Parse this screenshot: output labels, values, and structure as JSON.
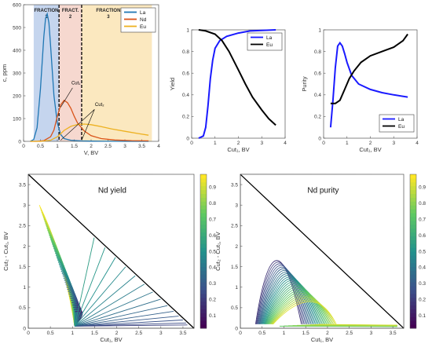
{
  "chart_data": [
    {
      "type": "line",
      "xlabel": "V, BV",
      "ylabel": "c, ppm",
      "xlim": [
        0,
        4
      ],
      "ylim": [
        0,
        600
      ],
      "xticks": [
        "0",
        "0.5",
        "1",
        "1.5",
        "2",
        "2.5",
        "3",
        "3.5",
        "4"
      ],
      "yticks": [
        "0",
        "100",
        "200",
        "300",
        "400",
        "500",
        "600"
      ],
      "legend": "top-right",
      "fractions": [
        {
          "label_1": "FRACTION",
          "label_2": "1",
          "x_range": [
            0.3,
            1.05
          ],
          "color": "#c5d5ee"
        },
        {
          "label_1": "FRACT.",
          "label_2": "2",
          "x_range": [
            1.05,
            1.72
          ],
          "color": "#f6d8cf"
        },
        {
          "label_1": "FRACTION",
          "label_2": "3",
          "x_range": [
            1.72,
            3.8
          ],
          "color": "#fbe8bf"
        }
      ],
      "cut_labels": [
        "Cut₁",
        "Cut₂"
      ],
      "series": [
        {
          "name": "La",
          "color": "#1f77b4",
          "x": [
            0.2,
            0.3,
            0.4,
            0.5,
            0.6,
            0.65,
            0.7,
            0.75,
            0.8,
            0.9,
            1.0,
            1.1,
            1.2,
            1.4,
            1.7,
            2.0,
            3.0,
            3.7
          ],
          "y": [
            0,
            8,
            60,
            230,
            460,
            540,
            560,
            520,
            420,
            200,
            80,
            30,
            12,
            5,
            2,
            1,
            0,
            0
          ]
        },
        {
          "name": "Nd",
          "color": "#d95319",
          "x": [
            0.2,
            0.4,
            0.6,
            0.8,
            0.9,
            1.0,
            1.1,
            1.2,
            1.3,
            1.4,
            1.5,
            1.6,
            1.8,
            2.0,
            2.3,
            2.7,
            3.2,
            3.7
          ],
          "y": [
            0,
            0,
            3,
            20,
            50,
            110,
            160,
            180,
            170,
            145,
            110,
            80,
            45,
            25,
            12,
            6,
            3,
            2
          ]
        },
        {
          "name": "Eu",
          "color": "#edb120",
          "x": [
            0.2,
            0.5,
            0.8,
            1.0,
            1.2,
            1.4,
            1.6,
            1.8,
            2.0,
            2.3,
            2.6,
            3.0,
            3.4,
            3.7
          ],
          "y": [
            0,
            0,
            5,
            20,
            48,
            66,
            74,
            76,
            73,
            65,
            55,
            44,
            34,
            27
          ]
        }
      ]
    },
    {
      "type": "line",
      "xlabel": "Cut₁, BV",
      "ylabel": "Yield",
      "xlim": [
        0,
        4
      ],
      "ylim": [
        0,
        1
      ],
      "xticks": [
        "0",
        "1",
        "2",
        "3",
        "4"
      ],
      "yticks": [
        "0",
        "0.2",
        "0.4",
        "0.6",
        "0.8",
        "1"
      ],
      "legend": "top-right",
      "series": [
        {
          "name": "La",
          "color": "#1a1aff",
          "x": [
            0.3,
            0.5,
            0.6,
            0.7,
            0.8,
            0.9,
            1.0,
            1.2,
            1.5,
            2.0,
            2.5,
            3.0,
            3.6
          ],
          "y": [
            0,
            0.02,
            0.1,
            0.3,
            0.55,
            0.72,
            0.83,
            0.9,
            0.94,
            0.97,
            0.99,
            0.995,
            1.0
          ]
        },
        {
          "name": "Eu",
          "color": "#000000",
          "x": [
            0.3,
            0.6,
            1.0,
            1.3,
            1.6,
            2.0,
            2.3,
            2.6,
            3.0,
            3.3,
            3.6
          ],
          "y": [
            1.0,
            0.99,
            0.96,
            0.9,
            0.8,
            0.63,
            0.5,
            0.38,
            0.26,
            0.18,
            0.12
          ]
        }
      ]
    },
    {
      "type": "line",
      "xlabel": "Cut₁, BV",
      "ylabel": "Purity",
      "xlim": [
        0,
        4
      ],
      "ylim": [
        0,
        1
      ],
      "xticks": [
        "0",
        "1",
        "2",
        "3",
        "4"
      ],
      "yticks": [
        "0",
        "0.2",
        "0.4",
        "0.6",
        "0.8",
        "1"
      ],
      "legend": "bottom-right",
      "series": [
        {
          "name": "La",
          "color": "#1a1aff",
          "x": [
            0.3,
            0.4,
            0.5,
            0.6,
            0.7,
            0.8,
            0.9,
            1.0,
            1.2,
            1.5,
            2.0,
            2.5,
            3.0,
            3.6
          ],
          "y": [
            0.1,
            0.35,
            0.65,
            0.85,
            0.88,
            0.85,
            0.78,
            0.7,
            0.58,
            0.5,
            0.45,
            0.42,
            0.4,
            0.38
          ]
        },
        {
          "name": "Eu",
          "color": "#000000",
          "x": [
            0.3,
            0.5,
            0.7,
            0.9,
            1.1,
            1.3,
            1.6,
            2.0,
            2.5,
            3.0,
            3.4,
            3.6
          ],
          "y": [
            0.32,
            0.32,
            0.35,
            0.45,
            0.55,
            0.62,
            0.7,
            0.76,
            0.8,
            0.84,
            0.9,
            0.96
          ]
        }
      ]
    },
    {
      "type": "contour",
      "title": "Nd yield",
      "xlabel": "Cut₁, BV",
      "ylabel": "Cut₂ - Cut₁, BV",
      "xlim": [
        0,
        3.75
      ],
      "ylim": [
        0,
        3.75
      ],
      "xticks": [
        "0",
        "0.5",
        "1",
        "1.5",
        "2",
        "2.5",
        "3",
        "3.5"
      ],
      "yticks": [
        "0",
        "0.5",
        "1",
        "1.5",
        "2",
        "2.5",
        "3",
        "3.5"
      ],
      "colorbar_ticks": [
        "0.1",
        "0.2",
        "0.3",
        "0.4",
        "0.5",
        "0.6",
        "0.7",
        "0.8",
        "0.9"
      ],
      "colormap": "viridis"
    },
    {
      "type": "contour",
      "title": "Nd purity",
      "xlabel": "Cut₁, BV",
      "ylabel": "Cut₂ - Cut₁, BV",
      "xlim": [
        0,
        3.75
      ],
      "ylim": [
        0,
        3.75
      ],
      "xticks": [
        "0",
        "0.5",
        "1",
        "1.5",
        "2",
        "2.5",
        "3",
        "3.5"
      ],
      "yticks": [
        "0",
        "0.5",
        "1",
        "1.5",
        "2",
        "2.5",
        "3",
        "3.5"
      ],
      "colorbar_ticks": [
        "0.1",
        "0.2",
        "0.3",
        "0.4",
        "0.5",
        "0.6",
        "0.7",
        "0.8",
        "0.9"
      ],
      "colormap": "viridis"
    }
  ]
}
